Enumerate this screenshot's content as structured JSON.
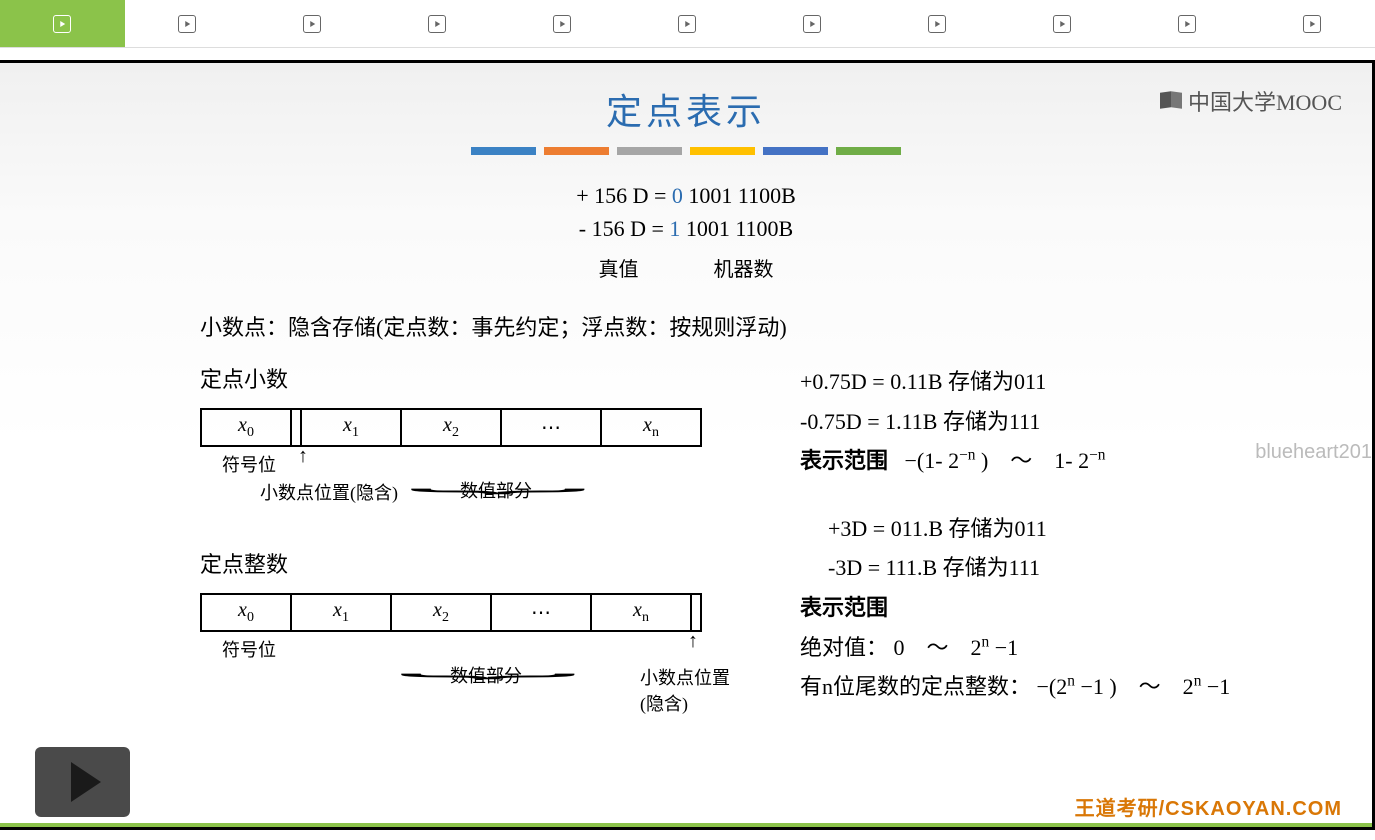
{
  "tabs": {
    "count": 11,
    "active_index": 0
  },
  "logo": {
    "text": "中国大学MOOC"
  },
  "slide": {
    "title": "定点表示",
    "bar_colors": [
      "#3b82c4",
      "#ed7d31",
      "#a6a6a6",
      "#ffc000",
      "#4472c4",
      "#70ad47"
    ],
    "eq1": {
      "prefix": "+ 156 D = ",
      "highlight": "0",
      "suffix": " 1001 1100B"
    },
    "eq2": {
      "prefix": "-  156 D = ",
      "highlight": "1",
      "suffix": " 1001 1100B"
    },
    "label_truth": "真值",
    "label_machine": "机器数",
    "body_line": "小数点：隐含存储(定点数：事先约定；浮点数：按规则浮动)",
    "fraction": {
      "heading": "定点小数",
      "cells": [
        "x₀",
        "x₁",
        "x₂",
        "⋯",
        "xₙ"
      ],
      "sign_label": "符号位",
      "point_label": "小数点位置(隐含)",
      "value_label": "数值部分"
    },
    "integer": {
      "heading": "定点整数",
      "cells": [
        "x₀",
        "x₁",
        "x₂",
        "⋯",
        "xₙ"
      ],
      "sign_label": "符号位",
      "point_label": "小数点位置(隐含)",
      "value_label": "数值部分"
    },
    "right_fraction": {
      "l1": "+0.75D =  0.11B   存储为011",
      "l2": "-0.75D =  1.11B   存储为111",
      "range_label": "表示范围",
      "range_formula_html": "−(1- 2<sup>−n</sup> )　〜　1- 2<sup>−n</sup>"
    },
    "right_integer": {
      "l1": "+3D  =  011.B   存储为011",
      "l2": "-3D  =  111.B   存储为111",
      "range_label": "表示范围",
      "abs_label": "绝对值：",
      "abs_formula_html": "0　〜　2<sup>n</sup> −1",
      "mantissa_label": "有n位尾数的定点整数：",
      "mantissa_formula_html": "−(2<sup>n</sup> −1 )　〜　2<sup>n</sup> −1"
    }
  },
  "watermark": "blueheart201",
  "footer": "王道考研/CSKAOYAN.COM"
}
